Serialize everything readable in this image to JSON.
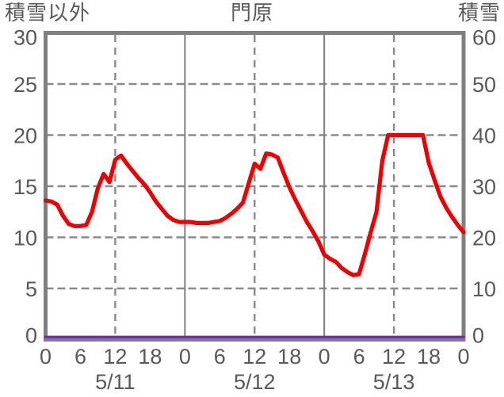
{
  "header": {
    "left_axis_title": "積雪以外",
    "chart_title": "門原",
    "right_axis_title": "積雪"
  },
  "chart_data": {
    "type": "line",
    "title": "門原",
    "left_axis": {
      "title": "積雪以外",
      "min": 0,
      "max": 30,
      "tick_interval": 5,
      "tick_labels": [
        "0",
        "5",
        "10",
        "15",
        "20",
        "25",
        "30"
      ]
    },
    "right_axis": {
      "title": "積雪",
      "min": 0,
      "max": 60,
      "tick_interval": 10,
      "tick_labels": [
        "0",
        "10",
        "20",
        "30",
        "40",
        "50",
        "60"
      ]
    },
    "x_axis": {
      "unit": "hours",
      "range_hours": [
        0,
        72
      ],
      "tick_step_hours": 6,
      "tick_labels": [
        "0",
        "6",
        "12",
        "18",
        "0",
        "6",
        "12",
        "18",
        "0",
        "6",
        "12",
        "18",
        "0"
      ],
      "day_labels": [
        "5/11",
        "5/12",
        "5/13"
      ],
      "solid_gridline_hours": [
        24,
        48
      ],
      "dashed_gridline_hours": [
        12,
        36,
        60
      ],
      "dashed_level_gridlines_left_scale": [
        5,
        10,
        15,
        20,
        25
      ]
    },
    "series": [
      {
        "name": "red-line",
        "axis": "left",
        "color": "#ee0000",
        "x_start_hour": 0,
        "x_step_hours": 1,
        "values": [
          13.6,
          13.5,
          13.2,
          12.1,
          11.3,
          11.1,
          11.1,
          11.2,
          12.5,
          14.8,
          16.2,
          15.4,
          17.6,
          18.0,
          17.2,
          16.5,
          15.8,
          15.2,
          14.4,
          13.5,
          12.8,
          12.1,
          11.7,
          11.5,
          11.5,
          11.5,
          11.4,
          11.4,
          11.4,
          11.5,
          11.6,
          11.9,
          12.3,
          12.8,
          13.4,
          15.3,
          17.2,
          16.7,
          18.2,
          18.1,
          17.8,
          16.3,
          14.9,
          13.7,
          12.6,
          11.5,
          10.6,
          9.6,
          8.3,
          7.9,
          7.6,
          7.0,
          6.6,
          6.3,
          6.4,
          8.4,
          10.5,
          12.5,
          17.5,
          20.0,
          20.0,
          20.0,
          20.0,
          20.0,
          20.0,
          20.0,
          17.3,
          15.6,
          14.0,
          12.9,
          12.0,
          11.2,
          10.5
        ]
      },
      {
        "name": "purple-line",
        "axis": "right",
        "color": "#7030a0",
        "x_start_hour": 0,
        "x_step_hours": 72,
        "values": [
          0,
          0
        ]
      }
    ],
    "legend": "none",
    "grid_on": true,
    "colors": {
      "border": "#7f7f7f",
      "gridline": "#8b8b8b",
      "text": "#595959",
      "background": "#ffffff"
    }
  }
}
